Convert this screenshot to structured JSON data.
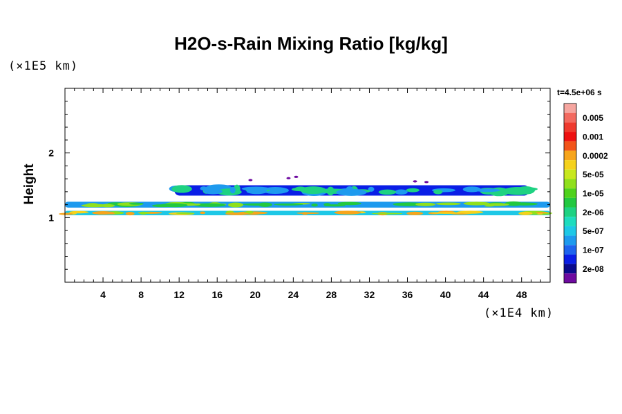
{
  "chart_data": {
    "type": "heatmap",
    "title": "H2O-s-Rain Mixing Ratio [kg/kg]",
    "xlabel": "",
    "ylabel": "Height",
    "x_unit": "(×1E4 km)",
    "y_unit": "(×1E5 km)",
    "time_label": "t=4.5e+06 s",
    "xlim": [
      0,
      51
    ],
    "ylim": [
      0,
      3
    ],
    "x_ticks": [
      4,
      8,
      12,
      16,
      20,
      24,
      28,
      32,
      36,
      40,
      44,
      48
    ],
    "y_ticks": [
      1,
      2
    ],
    "colorbar": {
      "levels": [
        {
          "label": "",
          "color": "#f6a6a0"
        },
        {
          "label": "0.005",
          "color": "#f36a60"
        },
        {
          "label": "",
          "color": "#ef3a2e"
        },
        {
          "label": "0.001",
          "color": "#ee1010"
        },
        {
          "label": "",
          "color": "#f2541a"
        },
        {
          "label": "0.0002",
          "color": "#f7a51c"
        },
        {
          "label": "",
          "color": "#f5d21c"
        },
        {
          "label": "5e-05",
          "color": "#c8e81e"
        },
        {
          "label": "",
          "color": "#90e01c"
        },
        {
          "label": "1e-05",
          "color": "#4fd21c"
        },
        {
          "label": "",
          "color": "#22c840"
        },
        {
          "label": "2e-06",
          "color": "#1ed282"
        },
        {
          "label": "",
          "color": "#1edcbe"
        },
        {
          "label": "5e-07",
          "color": "#1ec8e6"
        },
        {
          "label": "",
          "color": "#1e9aee"
        },
        {
          "label": "1e-07",
          "color": "#1e64ee"
        },
        {
          "label": "",
          "color": "#0a1ee6"
        },
        {
          "label": "2e-08",
          "color": "#0a0a8c"
        },
        {
          "label": "",
          "color": "#6e0aa0"
        }
      ]
    },
    "layers": [
      {
        "name": "upper layer",
        "x_range": [
          11.5,
          48.8
        ],
        "y_center": 1.42,
        "thickness": 0.16,
        "ramp": [
          "#0a1ee6",
          "#1e9aee",
          "#1ed282"
        ]
      },
      {
        "name": "middle layer",
        "x_range": [
          0,
          51
        ],
        "y_center": 1.2,
        "thickness": 0.09,
        "ramp": [
          "#1e9aee",
          "#22c840",
          "#90e01c"
        ]
      },
      {
        "name": "lower layer",
        "x_range": [
          0,
          51
        ],
        "y_center": 1.07,
        "thickness": 0.07,
        "ramp": [
          "#1ec8e6",
          "#90e01c",
          "#f5d21c",
          "#f7a51c"
        ]
      }
    ]
  }
}
